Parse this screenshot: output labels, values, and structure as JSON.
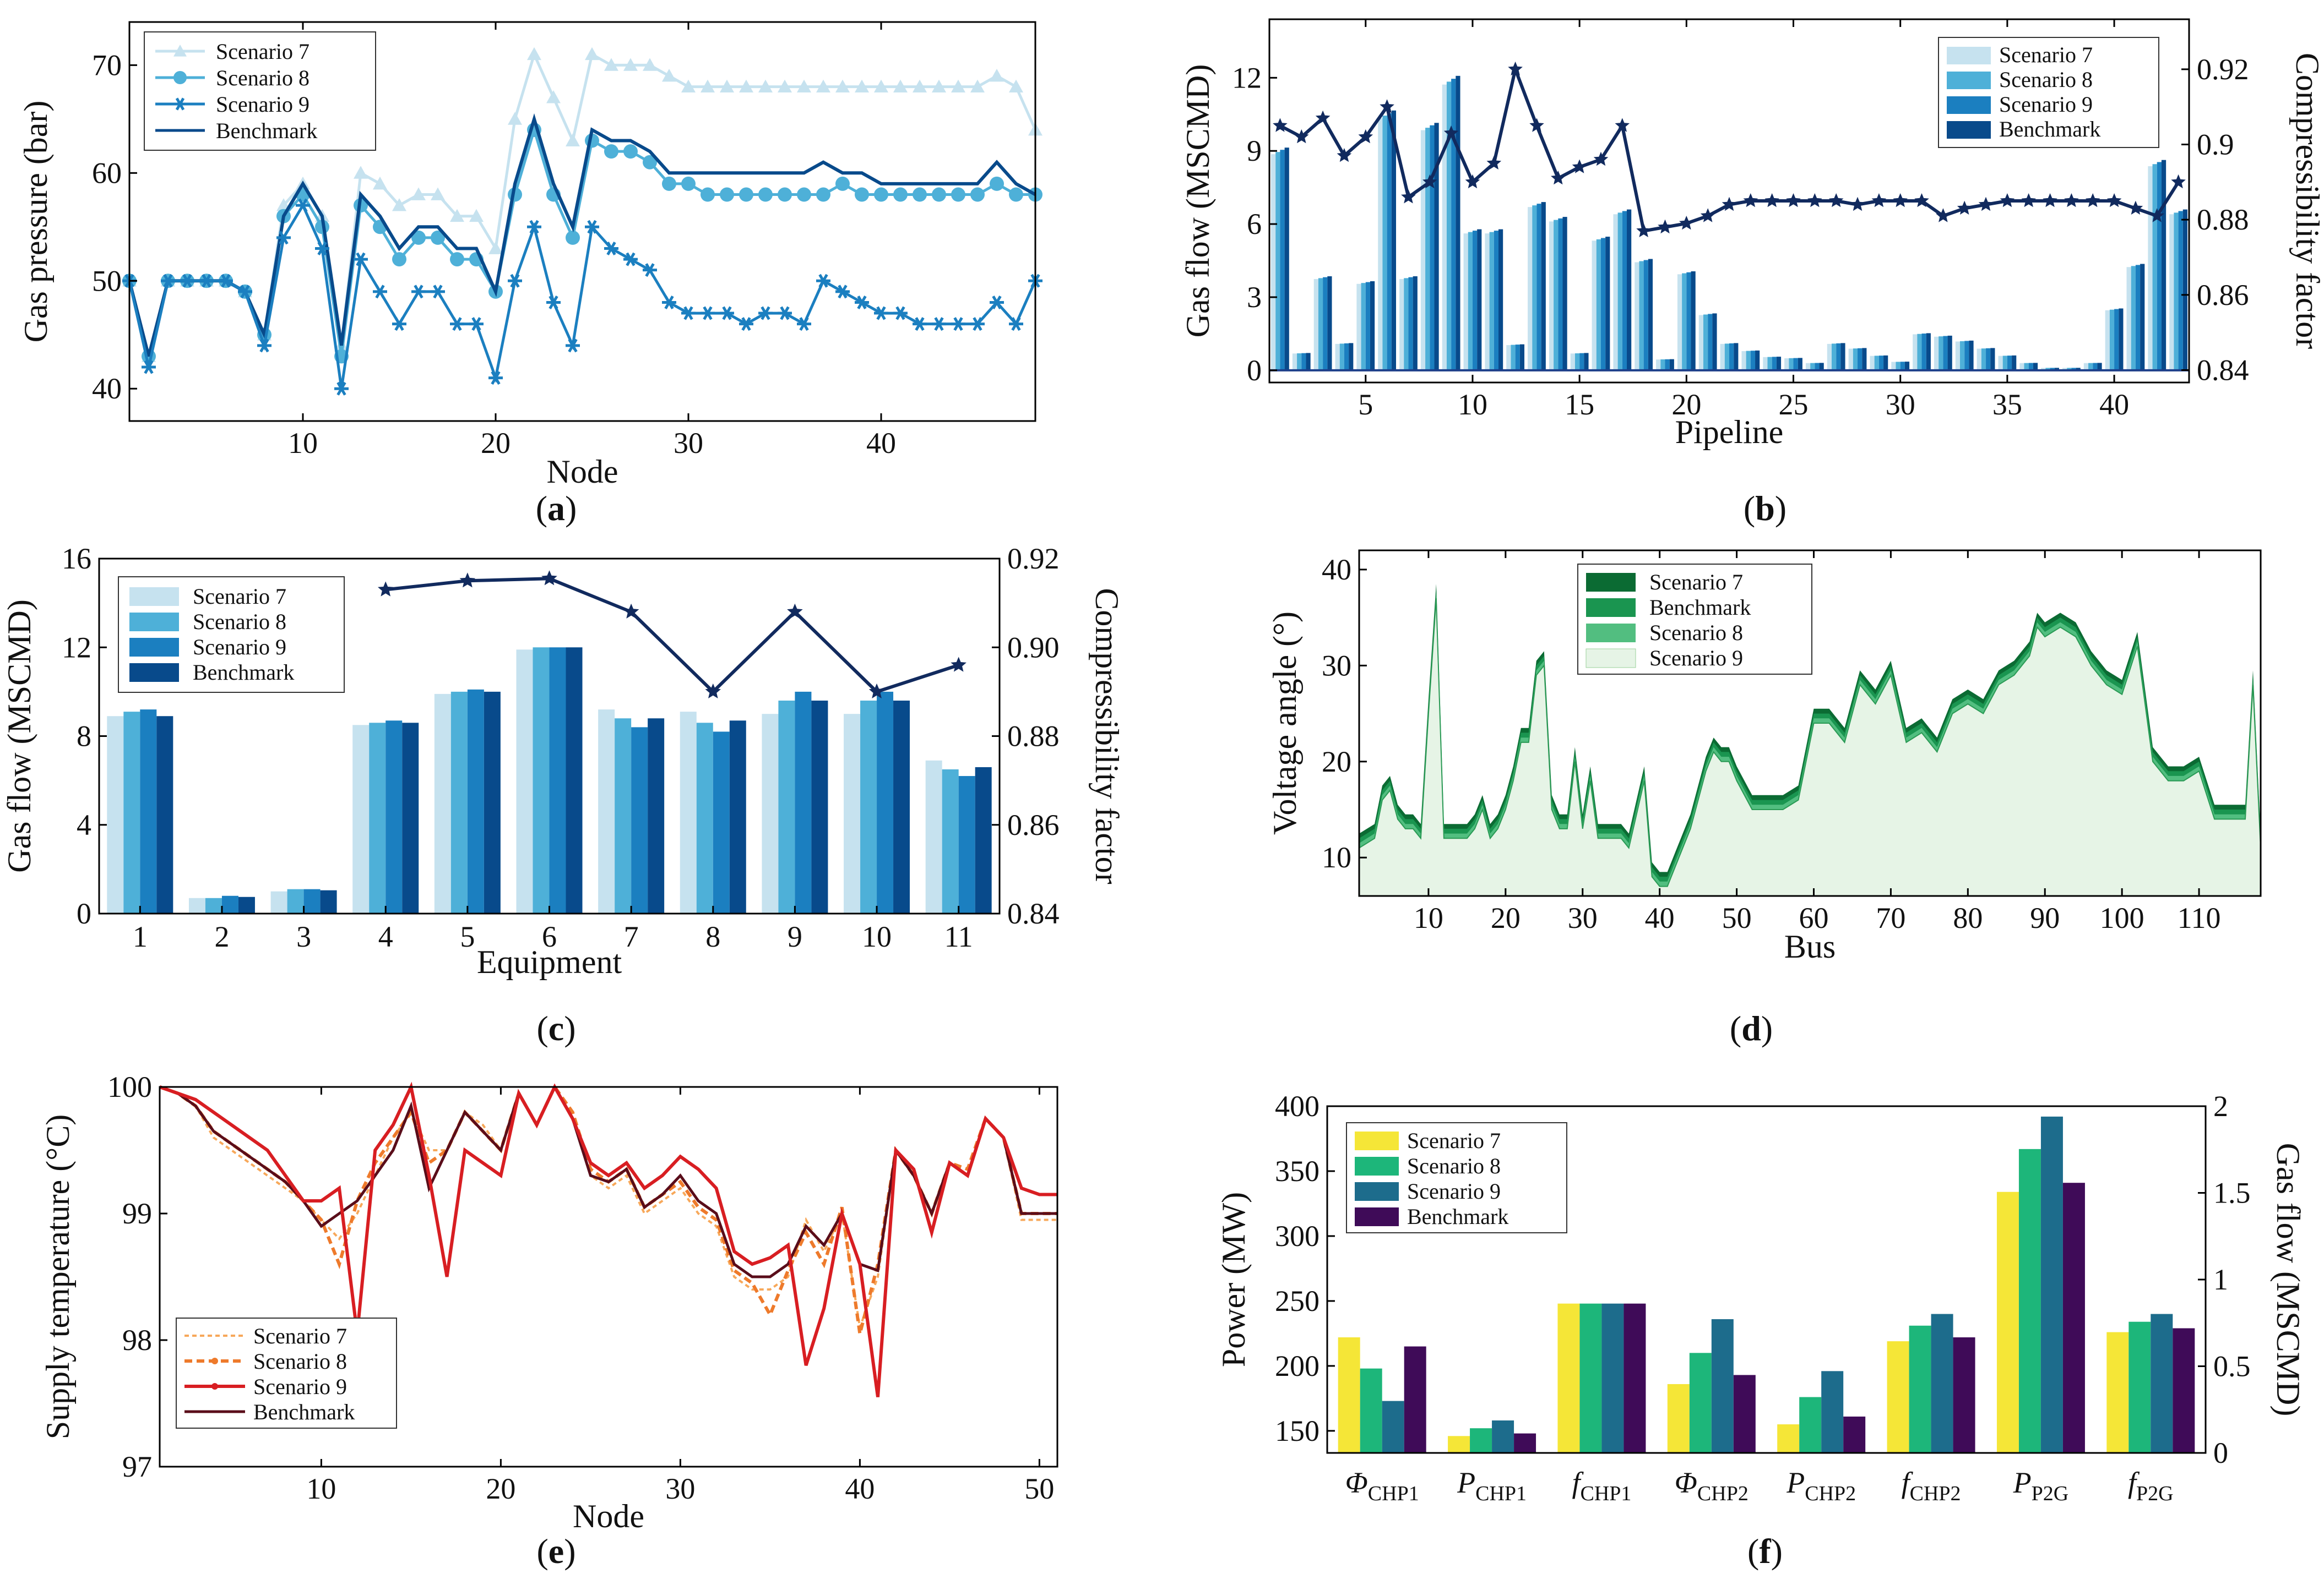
{
  "colors": {
    "blue_s7": "#c6e2ef",
    "blue_s8": "#4eb0d8",
    "blue_s9": "#1b7fc0",
    "blue_bm": "#084a8b",
    "navy": "#112a5e",
    "green_s7": "#0b6b33",
    "green_bm": "#1a9550",
    "green_s8": "#52be80",
    "green_s9": "#e6f4e6",
    "orange_s7": "#f7a85a",
    "orange_s8": "#ee7a2b",
    "red_s9": "#d81e22",
    "dark_bm": "#5a0d1a",
    "yellow": "#f5e637",
    "teal_green": "#1db67a",
    "teal_blue": "#1d6c8c",
    "purple": "#3f0b58"
  },
  "chart_data": [
    {
      "id": "a",
      "type": "line",
      "caption_open": "(",
      "caption_letter": "a",
      "caption_close": ")",
      "xlabel": "Node",
      "ylabel": "Gas pressure (bar)",
      "xlim": [
        1,
        48
      ],
      "ylim": [
        37,
        74
      ],
      "xticks": [
        10,
        20,
        30,
        40
      ],
      "yticks": [
        40,
        50,
        60,
        70
      ],
      "legend": [
        "Scenario 7",
        "Scenario 8",
        "Scenario 9",
        "Benchmark"
      ],
      "x": [
        1,
        2,
        3,
        4,
        5,
        6,
        7,
        8,
        9,
        10,
        11,
        12,
        13,
        14,
        15,
        16,
        17,
        18,
        19,
        20,
        21,
        22,
        23,
        24,
        25,
        26,
        27,
        28,
        29,
        30,
        31,
        32,
        33,
        34,
        35,
        36,
        37,
        38,
        39,
        40,
        41,
        42,
        43,
        44,
        45,
        46,
        47,
        48
      ],
      "series": [
        {
          "name": "Scenario 7",
          "values": [
            50,
            43,
            50,
            50,
            50,
            50,
            49,
            45,
            57,
            59,
            56,
            44,
            60,
            59,
            57,
            58,
            58,
            56,
            56,
            53,
            65,
            71,
            67,
            63,
            71,
            70,
            70,
            70,
            69,
            68,
            68,
            68,
            68,
            68,
            68,
            68,
            68,
            68,
            68,
            68,
            68,
            68,
            68,
            68,
            68,
            69,
            68,
            64
          ]
        },
        {
          "name": "Scenario 8",
          "values": [
            50,
            43,
            50,
            50,
            50,
            50,
            49,
            45,
            56,
            58,
            55,
            43,
            57,
            55,
            52,
            54,
            54,
            52,
            52,
            49,
            58,
            64,
            58,
            54,
            63,
            62,
            62,
            61,
            59,
            59,
            58,
            58,
            58,
            58,
            58,
            58,
            58,
            59,
            58,
            58,
            58,
            58,
            58,
            58,
            58,
            59,
            58,
            58
          ]
        },
        {
          "name": "Scenario 9",
          "values": [
            50,
            42,
            50,
            50,
            50,
            50,
            49,
            44,
            54,
            57,
            53,
            40,
            52,
            49,
            46,
            49,
            49,
            46,
            46,
            41,
            50,
            55,
            48,
            44,
            55,
            53,
            52,
            51,
            48,
            47,
            47,
            47,
            46,
            47,
            47,
            46,
            50,
            49,
            48,
            47,
            47,
            46,
            46,
            46,
            46,
            48,
            46,
            50
          ]
        },
        {
          "name": "Benchmark",
          "values": [
            50,
            43,
            50,
            50,
            50,
            50,
            49,
            45,
            56,
            59,
            56,
            44,
            58,
            56,
            53,
            55,
            55,
            53,
            53,
            49,
            59,
            65,
            59,
            55,
            64,
            63,
            63,
            62,
            60,
            60,
            60,
            60,
            60,
            60,
            60,
            60,
            61,
            60,
            60,
            59,
            59,
            59,
            59,
            59,
            59,
            61,
            59,
            58
          ]
        }
      ]
    },
    {
      "id": "b",
      "type": "bar",
      "caption_open": "(",
      "caption_letter": "b",
      "caption_close": ")",
      "xlabel": "Pipeline",
      "ylabel": "Gas flow (MSCMD)",
      "y2label": "Compressibility factor",
      "xlim": [
        0.5,
        43.5
      ],
      "ylim": [
        -0.5,
        14.4
      ],
      "y2lim": [
        0.8367,
        0.9333
      ],
      "xticks": [
        5,
        10,
        15,
        20,
        25,
        30,
        35,
        40
      ],
      "yticks": [
        0,
        3,
        6,
        9,
        12
      ],
      "y2ticks": [
        "0.84",
        "0.86",
        "0.88",
        "0.9",
        "0.92"
      ],
      "legend": [
        "Scenario 7",
        "Scenario 8",
        "Scenario 9",
        "Benchmark"
      ],
      "bar_values": [
        9.0,
        0.7,
        3.8,
        1.1,
        3.6,
        10.5,
        3.8,
        10.0,
        11.9,
        5.7,
        5.7,
        1.05,
        6.8,
        6.2,
        0.7,
        5.4,
        6.5,
        4.5,
        0.45,
        4.0,
        2.3,
        1.1,
        0.8,
        0.55,
        0.5,
        0.3,
        1.1,
        0.9,
        0.6,
        0.35,
        1.5,
        1.4,
        1.2,
        0.9,
        0.6,
        0.3,
        0.1,
        0.1,
        0.3,
        2.5,
        4.3,
        8.5,
        6.5
      ],
      "compressibility": [
        0.905,
        0.902,
        0.907,
        0.897,
        0.902,
        0.91,
        0.886,
        0.89,
        0.903,
        0.89,
        0.895,
        0.92,
        0.905,
        0.891,
        0.894,
        0.896,
        0.905,
        0.877,
        0.878,
        0.879,
        0.881,
        0.884,
        0.885,
        0.885,
        0.885,
        0.885,
        0.885,
        0.884,
        0.885,
        0.885,
        0.885,
        0.881,
        0.883,
        0.884,
        0.885,
        0.885,
        0.885,
        0.885,
        0.885,
        0.885,
        0.883,
        0.881,
        0.89
      ]
    },
    {
      "id": "c",
      "type": "bar",
      "caption_open": "(",
      "caption_letter": "c",
      "caption_close": ")",
      "xlabel": "Equipment",
      "ylabel": "Gas flow (MSCMD)",
      "y2label": "Compressibility factor",
      "ylim": [
        0,
        16
      ],
      "y2lim": [
        0.84,
        0.92
      ],
      "categories": [
        "1",
        "2",
        "3",
        "4",
        "5",
        "6",
        "7",
        "8",
        "9",
        "10",
        "11"
      ],
      "yticks": [
        0,
        4,
        8,
        12,
        16
      ],
      "y2ticks": [
        "0.84",
        "0.86",
        "0.88",
        "0.90",
        "0.92"
      ],
      "legend": [
        "Scenario 7",
        "Scenario 8",
        "Scenario 9",
        "Benchmark"
      ],
      "series": [
        {
          "name": "Scenario 7",
          "values": [
            8.9,
            0.7,
            1.0,
            8.5,
            9.9,
            11.9,
            9.2,
            9.1,
            9.0,
            9.0,
            6.9
          ]
        },
        {
          "name": "Scenario 8",
          "values": [
            9.1,
            0.7,
            1.1,
            8.6,
            10.0,
            12.0,
            8.8,
            8.6,
            9.6,
            9.6,
            6.5
          ]
        },
        {
          "name": "Scenario 9",
          "values": [
            9.2,
            0.8,
            1.1,
            8.7,
            10.1,
            12.0,
            8.4,
            8.2,
            10.0,
            10.0,
            6.2
          ]
        },
        {
          "name": "Benchmark",
          "values": [
            8.9,
            0.75,
            1.05,
            8.6,
            10.0,
            12.0,
            8.8,
            8.7,
            9.6,
            9.6,
            6.6
          ]
        }
      ],
      "compressibility_x": [
        4,
        5,
        6,
        7,
        8,
        9,
        10,
        11
      ],
      "compressibility": [
        0.913,
        0.915,
        0.9155,
        0.908,
        0.89,
        0.908,
        0.89,
        0.896
      ]
    },
    {
      "id": "d",
      "type": "area",
      "caption_open": "(",
      "caption_letter": "d",
      "caption_close": ")",
      "xlabel": "Bus",
      "ylabel": "Voltage angle (°)",
      "xlim": [
        1,
        118
      ],
      "ylim": [
        6,
        42
      ],
      "xticks": [
        10,
        20,
        30,
        40,
        50,
        60,
        70,
        80,
        90,
        100,
        110
      ],
      "yticks": [
        10,
        20,
        30,
        40
      ],
      "legend": [
        "Scenario 7",
        "Benchmark",
        "Scenario 8",
        "Scenario 9"
      ],
      "x": [
        1,
        3,
        4,
        5,
        6,
        7,
        8,
        9,
        10,
        11,
        12,
        14,
        15,
        16,
        17,
        18,
        19,
        20,
        21,
        22,
        23,
        24,
        25,
        26,
        27,
        28,
        29,
        30,
        31,
        32,
        33,
        34,
        35,
        36,
        38,
        39,
        40,
        41,
        42,
        44,
        46,
        47,
        48,
        49,
        50,
        52,
        54,
        56,
        58,
        60,
        62,
        64,
        66,
        68,
        70,
        72,
        74,
        76,
        78,
        80,
        82,
        84,
        86,
        88,
        89,
        90,
        92,
        94,
        96,
        98,
        100,
        102,
        104,
        106,
        108,
        110,
        112,
        114,
        116,
        117,
        118
      ],
      "area_values": [
        11,
        12,
        16,
        17,
        14,
        13,
        13,
        12,
        25,
        37,
        12,
        12,
        12,
        13,
        15,
        12,
        13,
        15,
        18,
        22,
        22,
        29,
        30,
        15,
        13,
        13,
        20,
        13,
        18,
        12,
        12,
        12,
        12,
        11,
        18,
        8,
        7,
        7,
        9,
        13,
        19,
        21,
        20,
        20,
        18,
        15,
        15,
        15,
        16,
        24,
        24,
        22,
        28,
        26,
        29,
        22,
        23,
        21,
        25,
        26,
        25,
        28,
        29,
        31,
        34,
        33,
        34,
        33,
        30,
        28,
        27,
        32,
        20,
        18,
        18,
        19,
        14,
        14,
        14,
        28,
        11
      ],
      "layer_offsets": [
        {
          "name": "Scenario 7",
          "offset": 1.5
        },
        {
          "name": "Benchmark",
          "offset": 1.0
        },
        {
          "name": "Scenario 8",
          "offset": 0.5
        },
        {
          "name": "Scenario 9",
          "offset": 0.0
        }
      ]
    },
    {
      "id": "e",
      "type": "line",
      "caption_open": "(",
      "caption_letter": "e",
      "caption_close": ")",
      "xlabel": "Node",
      "ylabel": "Supply temperature (°C)",
      "xlim": [
        1,
        51
      ],
      "ylim": [
        97,
        100
      ],
      "xticks": [
        10,
        20,
        30,
        40,
        50
      ],
      "yticks": [
        97,
        98,
        99,
        100
      ],
      "legend": [
        "Scenario 7",
        "Scenario 8",
        "Scenario 9",
        "Benchmark"
      ],
      "x": [
        1,
        2,
        3,
        4,
        5,
        6,
        7,
        8,
        9,
        10,
        11,
        12,
        13,
        14,
        15,
        16,
        17,
        18,
        19,
        20,
        21,
        22,
        23,
        24,
        25,
        26,
        27,
        28,
        29,
        30,
        31,
        32,
        33,
        34,
        35,
        36,
        37,
        38,
        39,
        40,
        41,
        42,
        43,
        44,
        45,
        46,
        47,
        48,
        49,
        50,
        51
      ],
      "series": [
        {
          "name": "Scenario 7",
          "values": [
            100,
            99.95,
            99.85,
            99.6,
            99.5,
            99.4,
            99.3,
            99.2,
            99.1,
            98.95,
            98.8,
            99.0,
            99.3,
            99.6,
            99.8,
            99.5,
            99.5,
            99.8,
            99.7,
            99.5,
            99.95,
            99.7,
            100,
            99.75,
            99.3,
            99.2,
            99.3,
            99.0,
            99.1,
            99.2,
            99.0,
            98.9,
            98.5,
            98.4,
            98.4,
            98.5,
            98.95,
            98.7,
            99.0,
            98.1,
            98.5,
            99.5,
            99.3,
            99.0,
            99.4,
            99.3,
            99.75,
            99.6,
            98.95,
            98.95,
            98.95
          ]
        },
        {
          "name": "Scenario 8",
          "values": [
            100,
            99.95,
            99.85,
            99.65,
            99.55,
            99.45,
            99.35,
            99.25,
            99.1,
            98.95,
            98.6,
            99.1,
            99.4,
            99.6,
            99.8,
            99.4,
            99.5,
            99.8,
            99.65,
            99.5,
            99.95,
            99.7,
            100,
            99.8,
            99.35,
            99.25,
            99.35,
            99.05,
            99.15,
            99.25,
            99.05,
            98.95,
            98.55,
            98.45,
            98.2,
            98.55,
            98.85,
            98.6,
            99.05,
            98.05,
            98.6,
            99.5,
            99.3,
            99.0,
            99.4,
            99.35,
            99.75,
            99.6,
            99.0,
            99.0,
            99.0
          ]
        },
        {
          "name": "Scenario 9",
          "values": [
            100,
            99.95,
            99.9,
            99.8,
            99.7,
            99.6,
            99.5,
            99.3,
            99.1,
            99.1,
            99.2,
            98.05,
            99.5,
            99.7,
            100,
            99.3,
            98.5,
            99.5,
            99.4,
            99.3,
            99.95,
            99.7,
            100,
            99.75,
            99.4,
            99.3,
            99.4,
            99.2,
            99.3,
            99.45,
            99.35,
            99.2,
            98.7,
            98.6,
            98.65,
            98.75,
            97.8,
            98.25,
            99.0,
            98.6,
            97.55,
            99.5,
            99.35,
            98.85,
            99.4,
            99.3,
            99.75,
            99.6,
            99.2,
            99.15,
            99.15
          ]
        },
        {
          "name": "Benchmark",
          "values": [
            100,
            99.95,
            99.85,
            99.65,
            99.55,
            99.45,
            99.35,
            99.25,
            99.1,
            98.9,
            99.0,
            99.1,
            99.3,
            99.5,
            99.85,
            99.2,
            99.5,
            99.8,
            99.65,
            99.5,
            99.95,
            99.7,
            100,
            99.75,
            99.3,
            99.25,
            99.35,
            99.05,
            99.15,
            99.3,
            99.1,
            99.0,
            98.6,
            98.5,
            98.5,
            98.6,
            98.9,
            98.75,
            99.0,
            98.6,
            98.55,
            99.5,
            99.3,
            99.0,
            99.4,
            99.3,
            99.75,
            99.6,
            99.0,
            99.0,
            99.0
          ]
        }
      ]
    },
    {
      "id": "f",
      "type": "bar",
      "caption_open": "(",
      "caption_letter": "f",
      "caption_close": ")",
      "ylabel": "Power (MW)",
      "y2label": "Gas flow (MSCMD)",
      "ylim": [
        133,
        400
      ],
      "y2lim": [
        0,
        2
      ],
      "yticks": [
        150,
        200,
        250,
        300,
        350,
        400
      ],
      "y2ticks": [
        "0",
        "0.5",
        "1",
        "1.5",
        "2"
      ],
      "legend": [
        "Scenario 7",
        "Scenario 8",
        "Scenario 9",
        "Benchmark"
      ],
      "categories": [
        {
          "main": "Φ",
          "sub": "CHP1",
          "italic": true
        },
        {
          "main": "P",
          "sub": "CHP1",
          "italic": true
        },
        {
          "main": "f",
          "sub": "CHP1",
          "italic": true
        },
        {
          "main": "Φ",
          "sub": "CHP2",
          "italic": true
        },
        {
          "main": "P",
          "sub": "CHP2",
          "italic": true
        },
        {
          "main": "f",
          "sub": "CHP2",
          "italic": true
        },
        {
          "main": "P",
          "sub": "P2G",
          "italic": true
        },
        {
          "main": "f",
          "sub": "P2G",
          "italic": true
        }
      ],
      "series": [
        {
          "name": "Scenario 7",
          "values": [
            222,
            146,
            248,
            186,
            155,
            219,
            334,
            226
          ]
        },
        {
          "name": "Scenario 8",
          "values": [
            198,
            152,
            248,
            210,
            176,
            231,
            367,
            234
          ]
        },
        {
          "name": "Scenario 9",
          "values": [
            173,
            158,
            248,
            236,
            196,
            240,
            392,
            240
          ]
        },
        {
          "name": "Benchmark",
          "values": [
            215,
            148,
            248,
            193,
            161,
            222,
            341,
            229
          ]
        }
      ]
    }
  ]
}
